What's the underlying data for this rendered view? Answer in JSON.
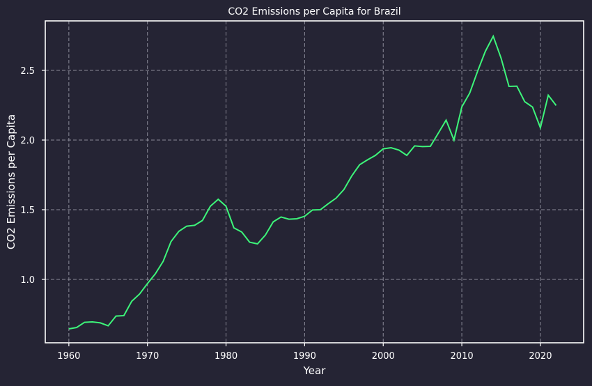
{
  "chart_data": {
    "type": "line",
    "title": "CO2 Emissions per Capita for Brazil",
    "xlabel": "Year",
    "ylabel": "CO2 Emissions per Capita",
    "xlim": [
      1957,
      2025.5
    ],
    "ylim": [
      0.545,
      2.855
    ],
    "x_ticks": [
      1960,
      1970,
      1980,
      1990,
      2000,
      2010,
      2020
    ],
    "y_ticks": [
      1.0,
      1.5,
      2.0,
      2.5
    ],
    "y_tick_labels": [
      "1.0",
      "1.5",
      "2.0",
      "2.5"
    ],
    "grid": true,
    "legend": "none",
    "colors": {
      "background": "#252434",
      "line": "#3df57a",
      "grid": "#8a8a98",
      "axes": "#ffffff"
    },
    "series": [
      {
        "x": [
          1960,
          1961,
          1962,
          1963,
          1964,
          1965,
          1966,
          1967,
          1968,
          1969,
          1970,
          1971,
          1972,
          1973,
          1974,
          1975,
          1976,
          1977,
          1978,
          1979,
          1980,
          1981,
          1982,
          1983,
          1984,
          1985,
          1986,
          1987,
          1988,
          1989,
          1990,
          1991,
          1992,
          1993,
          1994,
          1995,
          1996,
          1997,
          1998,
          1999,
          2000,
          2001,
          2002,
          2003,
          2004,
          2005,
          2006,
          2007,
          2008,
          2009,
          2010,
          2011,
          2012,
          2013,
          2014,
          2015,
          2016,
          2017,
          2018,
          2019,
          2020,
          2021,
          2022
        ],
        "values": [
          0.645,
          0.655,
          0.692,
          0.695,
          0.688,
          0.667,
          0.737,
          0.74,
          0.843,
          0.895,
          0.97,
          1.04,
          1.13,
          1.272,
          1.345,
          1.382,
          1.388,
          1.423,
          1.525,
          1.575,
          1.525,
          1.37,
          1.34,
          1.267,
          1.255,
          1.318,
          1.413,
          1.448,
          1.432,
          1.435,
          1.453,
          1.498,
          1.5,
          1.543,
          1.583,
          1.645,
          1.743,
          1.823,
          1.858,
          1.89,
          1.937,
          1.945,
          1.928,
          1.89,
          1.958,
          1.953,
          1.955,
          2.048,
          2.143,
          2.0,
          2.238,
          2.337,
          2.493,
          2.637,
          2.745,
          2.587,
          2.385,
          2.387,
          2.275,
          2.237,
          2.088,
          2.322,
          2.248
        ]
      }
    ]
  }
}
